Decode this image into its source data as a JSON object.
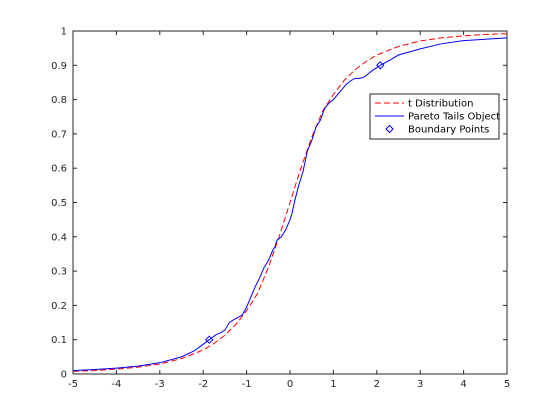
{
  "chart_data": {
    "type": "line",
    "title": "",
    "xlabel": "",
    "ylabel": "",
    "xlim": [
      -5,
      5
    ],
    "ylim": [
      0,
      1
    ],
    "x_ticks": [
      -5,
      -4,
      -3,
      -2,
      -1,
      0,
      1,
      2,
      3,
      4,
      5
    ],
    "y_ticks": [
      0,
      0.1,
      0.2,
      0.3,
      0.4,
      0.5,
      0.6,
      0.7,
      0.8,
      0.9,
      1
    ],
    "grid": false,
    "legend_position": "top-right",
    "series": [
      {
        "name": "t Distribution",
        "color": "#ff0000",
        "line_style": "dashed",
        "x": [
          -5,
          -4.5,
          -4,
          -3.5,
          -3,
          -2.5,
          -2,
          -1.75,
          -1.5,
          -1.25,
          -1,
          -0.75,
          -0.5,
          -0.25,
          0,
          0.25,
          0.5,
          0.75,
          1,
          1.25,
          1.5,
          1.75,
          2,
          2.5,
          3,
          3.5,
          4,
          4.5,
          5
        ],
        "y": [
          0.008,
          0.01,
          0.014,
          0.02,
          0.029,
          0.045,
          0.07,
          0.089,
          0.113,
          0.144,
          0.185,
          0.234,
          0.31,
          0.4,
          0.5,
          0.6,
          0.69,
          0.766,
          0.815,
          0.856,
          0.887,
          0.911,
          0.93,
          0.955,
          0.971,
          0.98,
          0.986,
          0.99,
          0.992
        ]
      },
      {
        "name": "Pareto Tails Object",
        "color": "#0000ff",
        "line_style": "solid",
        "x": [
          -5,
          -4.5,
          -4,
          -3.5,
          -3,
          -2.5,
          -2.2,
          -1.86,
          -1.7,
          -1.6,
          -1.5,
          -1.4,
          -1.3,
          -1.2,
          -1.1,
          -1.0,
          -0.9,
          -0.8,
          -0.7,
          -0.6,
          -0.5,
          -0.4,
          -0.35,
          -0.3,
          -0.2,
          -0.15,
          -0.1,
          0,
          0.05,
          0.1,
          0.2,
          0.3,
          0.4,
          0.5,
          0.6,
          0.7,
          0.8,
          0.9,
          1.0,
          1.1,
          1.2,
          1.3,
          1.4,
          1.5,
          1.6,
          1.7,
          1.8,
          1.9,
          2.08,
          2.3,
          2.5,
          3,
          3.5,
          4,
          4.5,
          5
        ],
        "y": [
          0.01,
          0.013,
          0.017,
          0.023,
          0.033,
          0.05,
          0.068,
          0.1,
          0.115,
          0.12,
          0.128,
          0.15,
          0.158,
          0.165,
          0.172,
          0.195,
          0.225,
          0.255,
          0.28,
          0.31,
          0.33,
          0.36,
          0.37,
          0.39,
          0.4,
          0.41,
          0.42,
          0.45,
          0.47,
          0.5,
          0.55,
          0.59,
          0.65,
          0.68,
          0.72,
          0.74,
          0.775,
          0.79,
          0.8,
          0.815,
          0.83,
          0.845,
          0.855,
          0.862,
          0.862,
          0.865,
          0.875,
          0.885,
          0.9,
          0.915,
          0.93,
          0.948,
          0.963,
          0.972,
          0.976,
          0.98
        ]
      }
    ],
    "boundary_points": {
      "name": "Boundary Points",
      "color": "#0000ff",
      "marker": "diamond",
      "x": [
        -1.86,
        2.08
      ],
      "y": [
        0.1,
        0.9
      ]
    }
  }
}
